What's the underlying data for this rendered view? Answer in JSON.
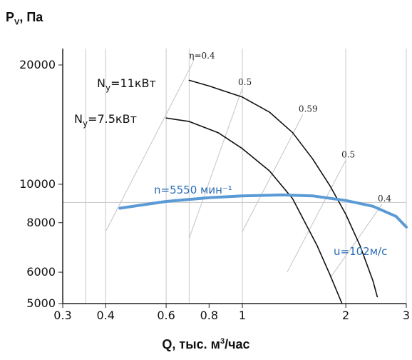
{
  "chart_data": {
    "type": "line",
    "ylabel_main": "P",
    "ylabel_sub": "V",
    "ylabel_unit": ", Па",
    "xlabel_main": "Q, тыс. м",
    "xlabel_sup": "3",
    "xlabel_unit": "/час",
    "xscale": "log",
    "yscale": "log",
    "xlim": [
      0.3,
      3
    ],
    "ylim": [
      5000,
      22000
    ],
    "xticks": [
      0.3,
      0.4,
      0.6,
      0.8,
      1,
      2,
      3
    ],
    "xtick_labels": [
      "0.3",
      "0.4",
      "0.6",
      "0.8",
      "1",
      "2",
      "3"
    ],
    "yticks": [
      5000,
      6000,
      8000,
      10000,
      20000
    ],
    "ytick_labels": [
      "5000",
      "6000",
      "8000",
      "10000",
      "20000"
    ],
    "vgrid": [
      0.35,
      0.4,
      0.6,
      0.7,
      1,
      2,
      3
    ],
    "hgrid": [
      9000
    ],
    "series": [
      {
        "name": "Ny=11кВт",
        "color": "#111111",
        "points": [
          [
            0.7,
            18300
          ],
          [
            0.8,
            17700
          ],
          [
            1.0,
            16600
          ],
          [
            1.2,
            15200
          ],
          [
            1.4,
            13500
          ],
          [
            1.6,
            11600
          ],
          [
            1.8,
            9900
          ],
          [
            2.0,
            8400
          ],
          [
            2.2,
            7000
          ],
          [
            2.4,
            5700
          ],
          [
            2.47,
            5200
          ]
        ]
      },
      {
        "name": "Ny=7.5кВт",
        "color": "#111111",
        "points": [
          [
            0.6,
            14700
          ],
          [
            0.7,
            14400
          ],
          [
            0.85,
            13500
          ],
          [
            1.0,
            12300
          ],
          [
            1.2,
            10800
          ],
          [
            1.4,
            9200
          ],
          [
            1.5,
            8200
          ],
          [
            1.65,
            7000
          ],
          [
            1.8,
            5900
          ],
          [
            1.95,
            5000
          ]
        ]
      },
      {
        "name": "n=5550 мин⁻¹",
        "color": "#5b9bd5",
        "points": [
          [
            0.44,
            8700
          ],
          [
            0.6,
            9050
          ],
          [
            0.8,
            9250
          ],
          [
            1.0,
            9350
          ],
          [
            1.3,
            9400
          ],
          [
            1.6,
            9350
          ],
          [
            2.0,
            9100
          ],
          [
            2.4,
            8800
          ],
          [
            2.8,
            8300
          ],
          [
            3.0,
            7800
          ]
        ]
      }
    ],
    "efficiency_lines": [
      {
        "label": "η=0.4",
        "from": [
          0.4,
          7600
        ],
        "to": [
          0.72,
          20400
        ]
      },
      {
        "label": "0.5",
        "from": [
          0.7,
          7300
        ],
        "to": [
          1.0,
          17500
        ]
      },
      {
        "label": "0.59",
        "from": [
          1.0,
          7600
        ],
        "to": [
          1.5,
          15000
        ]
      },
      {
        "label": "0.5",
        "from": [
          1.35,
          6000
        ],
        "to": [
          2.0,
          11500
        ]
      },
      {
        "label": "0.4",
        "from": [
          1.8,
          5800
        ],
        "to": [
          2.55,
          8900
        ]
      }
    ],
    "annotations": {
      "power_11": {
        "main": "N",
        "sub": "y",
        "rest": "=11кВт"
      },
      "power_75": {
        "main": "N",
        "sub": "y",
        "rest": "=7.5кВт"
      },
      "speed": "n=5550 мин⁻¹",
      "velocity": "u=102м/с"
    }
  }
}
